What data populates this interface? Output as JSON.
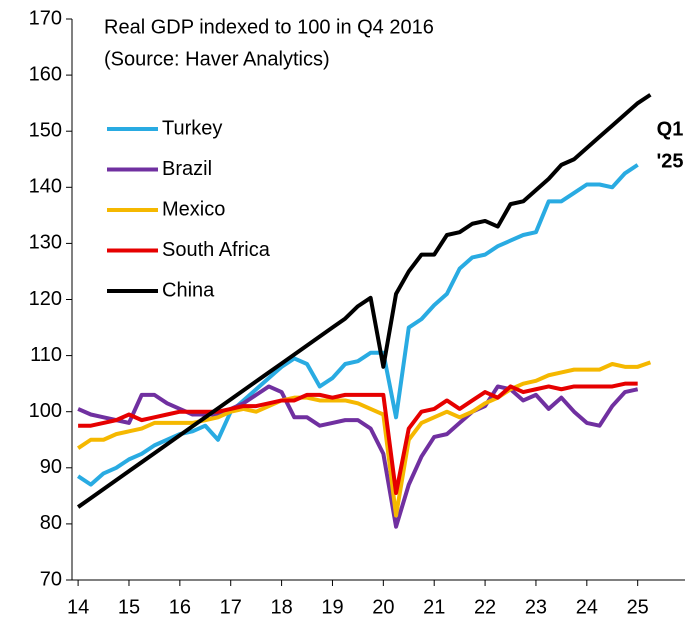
{
  "chart_data": {
    "type": "line",
    "title": [
      "Real GDP indexed to 100 in Q4 2016",
      "(Source: Haver Analytics)"
    ],
    "annotations": [
      "Q1",
      "'25"
    ],
    "annotation_color": "#29abe2",
    "x": [
      14,
      14.25,
      14.5,
      14.75,
      15,
      15.25,
      15.5,
      15.75,
      16,
      16.25,
      16.5,
      16.75,
      17,
      17.25,
      17.5,
      17.75,
      18,
      18.25,
      18.5,
      18.75,
      19,
      19.25,
      19.5,
      19.75,
      20,
      20.25,
      20.5,
      20.75,
      21,
      21.25,
      21.5,
      21.75,
      22,
      22.25,
      22.5,
      22.75,
      23,
      23.25,
      23.5,
      23.75,
      24,
      24.25,
      24.5,
      24.75,
      25,
      25.25
    ],
    "series": [
      {
        "name": "Turkey",
        "color": "#29abe2",
        "values": [
          88.5,
          87,
          89,
          90,
          91.5,
          92.5,
          94,
          95,
          96,
          96.5,
          97.5,
          95,
          100,
          102,
          104,
          106,
          108,
          109.5,
          108.5,
          104.5,
          106,
          108.5,
          109,
          110.5,
          110.5,
          99,
          115,
          116.5,
          119,
          121,
          125.5,
          127.5,
          128,
          129.5,
          130.5,
          131.5,
          132,
          137.5,
          137.5,
          139,
          140.5,
          140.5,
          140,
          142.5,
          144,
          null
        ]
      },
      {
        "name": "Brazil",
        "color": "#7030a0",
        "values": [
          100.5,
          99.5,
          99,
          98.5,
          98,
          103,
          103,
          101.5,
          100.5,
          99.5,
          99.5,
          99.5,
          100.5,
          101.5,
          103,
          104.5,
          103.5,
          99,
          99,
          97.5,
          98,
          98.5,
          98.5,
          97,
          92.5,
          79.5,
          87,
          92,
          95.5,
          96,
          98,
          100,
          101,
          104.5,
          104,
          102,
          103,
          100.5,
          102.5,
          100,
          98,
          97.5,
          101,
          103.5,
          104,
          null
        ]
      },
      {
        "name": "Mexico",
        "color": "#f5b800",
        "values": [
          93.5,
          95,
          95,
          96,
          96.5,
          97,
          98,
          98,
          98,
          98,
          98.5,
          99,
          100,
          100.5,
          100,
          101,
          102,
          102.5,
          102.5,
          102,
          102,
          102,
          101.5,
          100.5,
          99.5,
          81.5,
          95,
          98,
          99,
          100,
          99,
          100,
          101.5,
          102.5,
          104,
          105,
          105.5,
          106.5,
          107,
          107.5,
          107.5,
          107.5,
          108.5,
          108,
          108,
          108.8
        ]
      },
      {
        "name": "South Africa",
        "color": "#e60000",
        "values": [
          97.5,
          97.5,
          98,
          98.5,
          99.5,
          98.5,
          99,
          99.5,
          100,
          100,
          100,
          100,
          100.5,
          101,
          101,
          101.5,
          102,
          102,
          103,
          103,
          102.5,
          103,
          103,
          103,
          103,
          85.5,
          97,
          100,
          100.5,
          102,
          100.5,
          102,
          103.5,
          102.5,
          104.5,
          103.5,
          104,
          104.5,
          104,
          104.5,
          104.5,
          104.5,
          104.5,
          105,
          105,
          null
        ]
      },
      {
        "name": "China",
        "color": "#000000",
        "values": [
          83,
          84.6,
          86.2,
          87.8,
          89.4,
          91,
          92.6,
          94.2,
          95.8,
          97.4,
          99,
          100.6,
          102.2,
          103.8,
          105.4,
          107,
          108.6,
          110.2,
          111.8,
          113.4,
          115,
          116.6,
          118.8,
          120.3,
          108,
          121,
          125,
          128,
          128,
          131.5,
          132,
          133.5,
          134,
          133,
          137,
          137.5,
          139.5,
          141.5,
          144,
          145,
          147,
          149,
          151,
          153,
          155,
          156.5
        ]
      }
    ],
    "xlim": [
      13.88,
      25.93
    ],
    "xticks": [
      14,
      15,
      16,
      17,
      18,
      19,
      20,
      21,
      22,
      23,
      24,
      25
    ],
    "ylim": [
      70,
      170
    ],
    "yticks": [
      70,
      80,
      90,
      100,
      110,
      120,
      130,
      140,
      150,
      160,
      170
    ],
    "legend": "upper left"
  }
}
